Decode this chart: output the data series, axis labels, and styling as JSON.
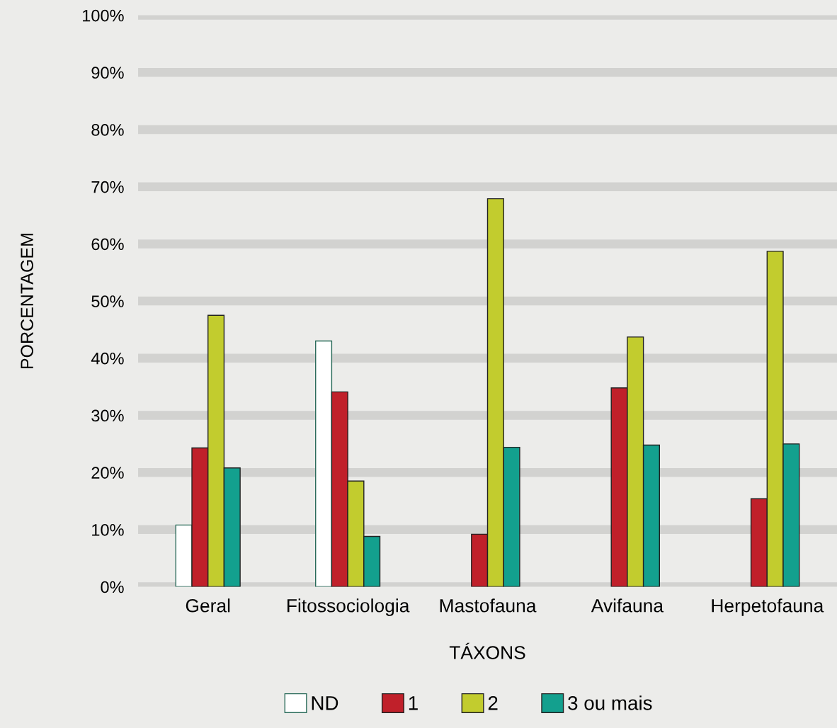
{
  "chart_data": {
    "type": "bar",
    "xlabel": "TÁXONS",
    "ylabel": "PORCENTAGEM",
    "categories": [
      "Geral",
      "Fitossociologia",
      "Mastofauna",
      "Avifauna",
      "Herpetofauna"
    ],
    "series": [
      {
        "name": "ND",
        "color": "#ffffff",
        "values": [
          10.8,
          43.0,
          null,
          null,
          null
        ]
      },
      {
        "name": "1",
        "color": "#c0202a",
        "values": [
          24.3,
          34.1,
          9.2,
          34.8,
          15.4
        ]
      },
      {
        "name": "2",
        "color": "#c2cc2e",
        "values": [
          47.5,
          18.5,
          67.9,
          43.7,
          58.7
        ]
      },
      {
        "name": "3 ou mais",
        "color": "#13a08e",
        "values": [
          20.8,
          8.8,
          24.4,
          24.8,
          25.0
        ]
      }
    ],
    "ylim": [
      0,
      100
    ],
    "yticks": [
      {
        "value": 0,
        "label": "0%"
      },
      {
        "value": 10,
        "label": "10%"
      },
      {
        "value": 20,
        "label": "20%"
      },
      {
        "value": 30,
        "label": "30%"
      },
      {
        "value": 40,
        "label": "40%"
      },
      {
        "value": 50,
        "label": "50%"
      },
      {
        "value": 60,
        "label": "60%"
      },
      {
        "value": 70,
        "label": "70%"
      },
      {
        "value": 80,
        "label": "80%"
      },
      {
        "value": 90,
        "label": "90%"
      },
      {
        "value": 100,
        "label": "100%"
      }
    ],
    "grid": "y",
    "legend": "bottom"
  }
}
